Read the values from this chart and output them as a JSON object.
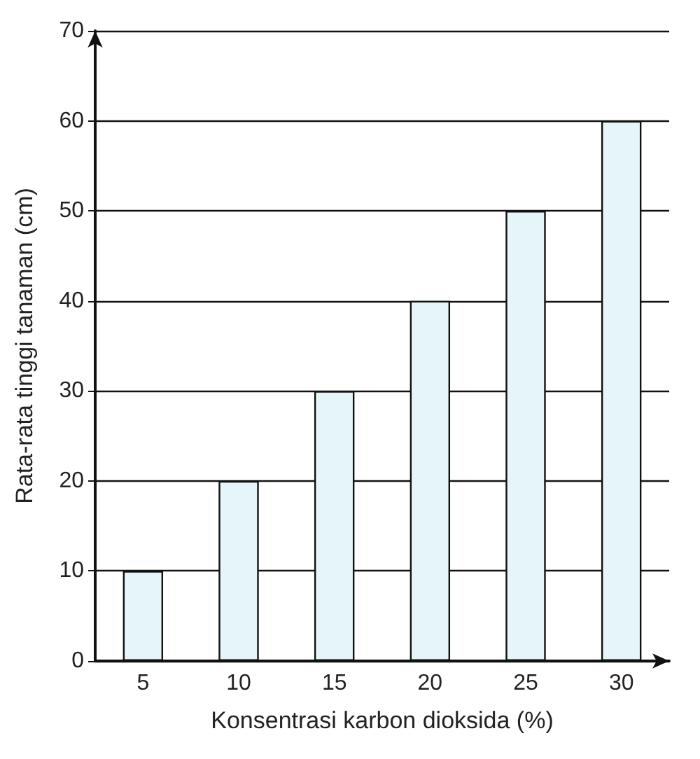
{
  "chart_data": {
    "type": "bar",
    "xlabel": "Konsentrasi karbon dioksida (%)",
    "ylabel": "Rata-rata tinggi tanaman (cm)",
    "categories": [
      "5",
      "10",
      "15",
      "20",
      "25",
      "30"
    ],
    "values": [
      10,
      20,
      30,
      40,
      50,
      60
    ],
    "color": "#e6f6f8",
    "ylim": [
      0,
      70
    ],
    "yticks": [
      0,
      10,
      20,
      30,
      40,
      50,
      60,
      70
    ],
    "grid": "y"
  }
}
